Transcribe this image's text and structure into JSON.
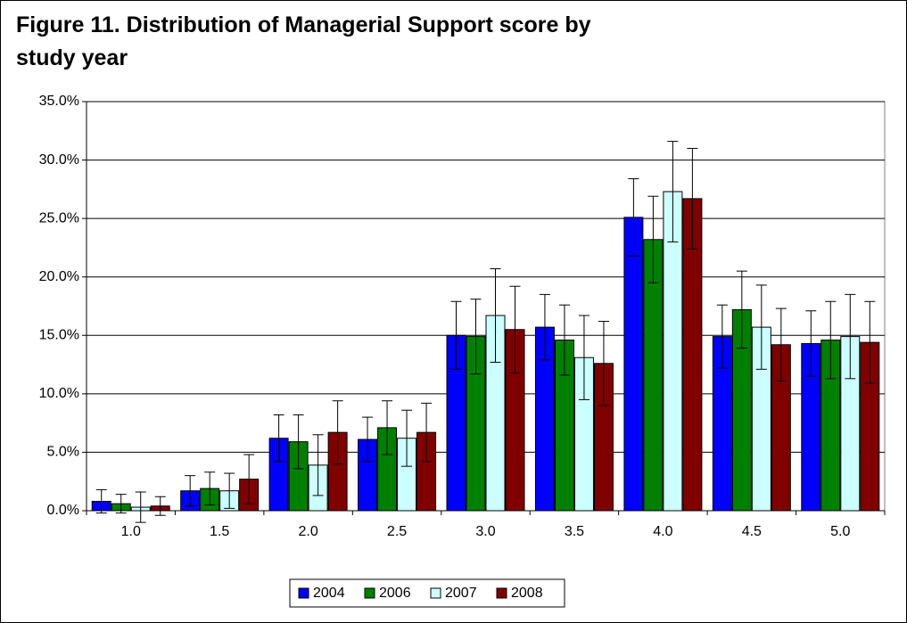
{
  "chart_data": {
    "type": "bar",
    "title": "Figure 11. Distribution of Managerial Support score by study year",
    "categories": [
      "1.0",
      "1.5",
      "2.0",
      "2.5",
      "3.0",
      "3.5",
      "4.0",
      "4.5",
      "5.0"
    ],
    "series": [
      {
        "name": "2004",
        "color": "#0000ff",
        "values": [
          0.8,
          1.7,
          6.2,
          6.1,
          15.0,
          15.7,
          25.1,
          14.9,
          14.3
        ],
        "errors": [
          1.0,
          1.3,
          2.0,
          1.9,
          2.9,
          2.8,
          3.3,
          2.7,
          2.8
        ]
      },
      {
        "name": "2006",
        "color": "#008000",
        "values": [
          0.6,
          1.9,
          5.9,
          7.1,
          14.9,
          14.6,
          23.2,
          17.2,
          14.6
        ],
        "errors": [
          0.8,
          1.4,
          2.3,
          2.3,
          3.2,
          3.0,
          3.7,
          3.3,
          3.3
        ]
      },
      {
        "name": "2007",
        "color": "#ccffff",
        "values": [
          0.3,
          1.7,
          3.9,
          6.2,
          16.7,
          13.1,
          27.3,
          15.7,
          14.9
        ],
        "errors": [
          1.3,
          1.5,
          2.6,
          2.4,
          4.0,
          3.6,
          4.3,
          3.6,
          3.6
        ]
      },
      {
        "name": "2008",
        "color": "#800000",
        "values": [
          0.4,
          2.7,
          6.7,
          6.7,
          15.5,
          12.6,
          26.7,
          14.2,
          14.4
        ],
        "errors": [
          0.8,
          2.1,
          2.7,
          2.5,
          3.7,
          3.6,
          4.3,
          3.1,
          3.5
        ]
      }
    ],
    "ylim": [
      0,
      35
    ],
    "yticks": [
      {
        "value": 0,
        "label": "0.0%"
      },
      {
        "value": 5,
        "label": "5.0%"
      },
      {
        "value": 10,
        "label": "10.0%"
      },
      {
        "value": 15,
        "label": "15.0%"
      },
      {
        "value": 20,
        "label": "20.0%"
      },
      {
        "value": 25,
        "label": "25.0%"
      },
      {
        "value": 30,
        "label": "30.0%"
      },
      {
        "value": 35,
        "label": "35.0%"
      }
    ],
    "grid": true,
    "legend": "bottom"
  }
}
